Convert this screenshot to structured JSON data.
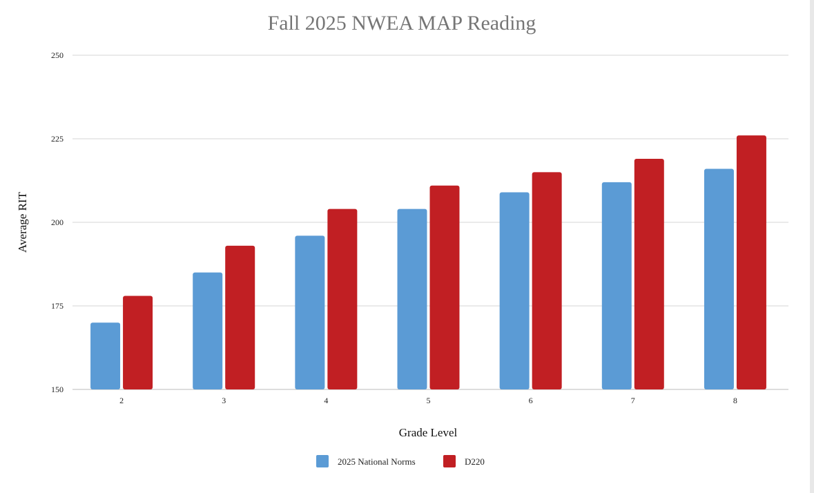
{
  "chart_data": {
    "type": "bar",
    "title": "Fall 2025 NWEA MAP Reading",
    "xlabel": "Grade Level",
    "ylabel": "Average RIT",
    "categories": [
      "2",
      "3",
      "4",
      "5",
      "6",
      "7",
      "8"
    ],
    "ylim": [
      150,
      250
    ],
    "yticks": [
      150,
      175,
      200,
      225,
      250
    ],
    "grid": true,
    "legend_position": "bottom",
    "series": [
      {
        "name": "2025 National Norms",
        "color": "#5b9bd5",
        "values": [
          170,
          185,
          196,
          204,
          209,
          212,
          216
        ]
      },
      {
        "name": "D220",
        "color": "#c11f23",
        "values": [
          178,
          193,
          204,
          211,
          215,
          219,
          226
        ]
      }
    ]
  }
}
